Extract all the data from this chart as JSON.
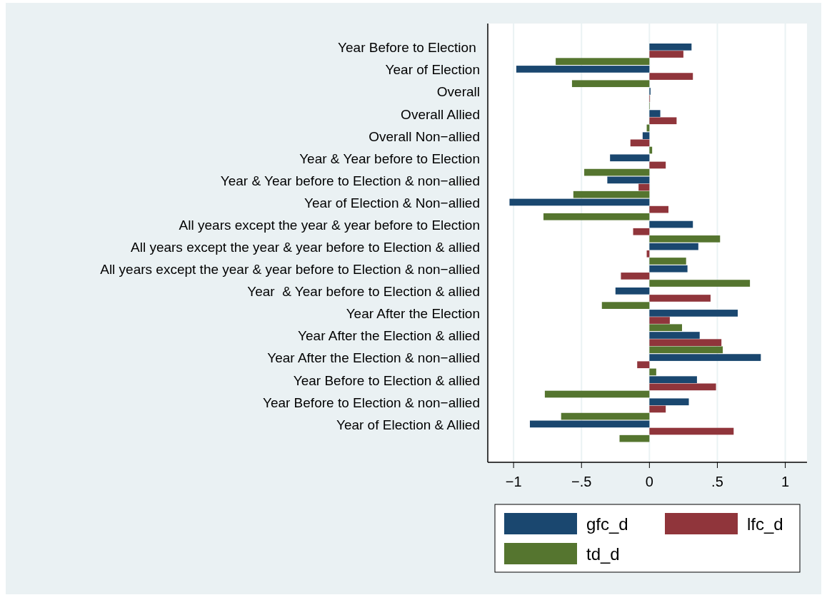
{
  "chart_data": {
    "type": "bar",
    "orientation": "horizontal",
    "categories": [
      "Year Before to Election ",
      "Year of Election",
      "Overall",
      "Overall Allied",
      "Overall Non−allied",
      "Year & Year before to Election",
      "Year & Year before to Election & non−allied",
      "Year of Election & Non−allied",
      "All years except the year & year before to Election",
      "All years except the year & year before to Election & allied",
      "All years except the year & year before to Election & non−allied",
      "Year  & Year before to Election & allied",
      "Year After the Election",
      "Year After the Election & allied",
      "Year After the Election & non−allied",
      "Year Before to Election & allied",
      "Year Before to Election & non−allied",
      "Year of Election & Allied"
    ],
    "series": [
      {
        "name": "gfc_d",
        "color": "#1a476f",
        "values": [
          0.31,
          -0.98,
          0.008,
          0.08,
          -0.05,
          -0.29,
          -0.31,
          -1.03,
          0.32,
          0.36,
          0.28,
          -0.25,
          0.65,
          0.37,
          0.82,
          0.35,
          0.29,
          -0.88
        ]
      },
      {
        "name": "lfc_d",
        "color": "#90353b",
        "values": [
          0.25,
          0.32,
          0.004,
          0.2,
          -0.14,
          0.12,
          -0.08,
          0.14,
          -0.12,
          -0.02,
          -0.21,
          0.45,
          0.15,
          0.53,
          -0.09,
          0.49,
          0.12,
          0.62
        ]
      },
      {
        "name": "td_d",
        "color": "#55752f",
        "values": [
          -0.69,
          -0.57,
          0.003,
          -0.02,
          0.02,
          -0.48,
          -0.56,
          -0.78,
          0.52,
          0.27,
          0.74,
          -0.35,
          0.24,
          0.54,
          0.05,
          -0.77,
          -0.65,
          -0.22
        ]
      }
    ],
    "xlim": [
      -1.19,
      1.16
    ],
    "xticks": [
      {
        "value": -1,
        "label": "−1"
      },
      {
        "value": -0.5,
        "label": "−.5"
      },
      0,
      {
        "value": 0.5,
        "label": ".5"
      },
      1
    ],
    "grid": "x",
    "legend": "bottom"
  }
}
